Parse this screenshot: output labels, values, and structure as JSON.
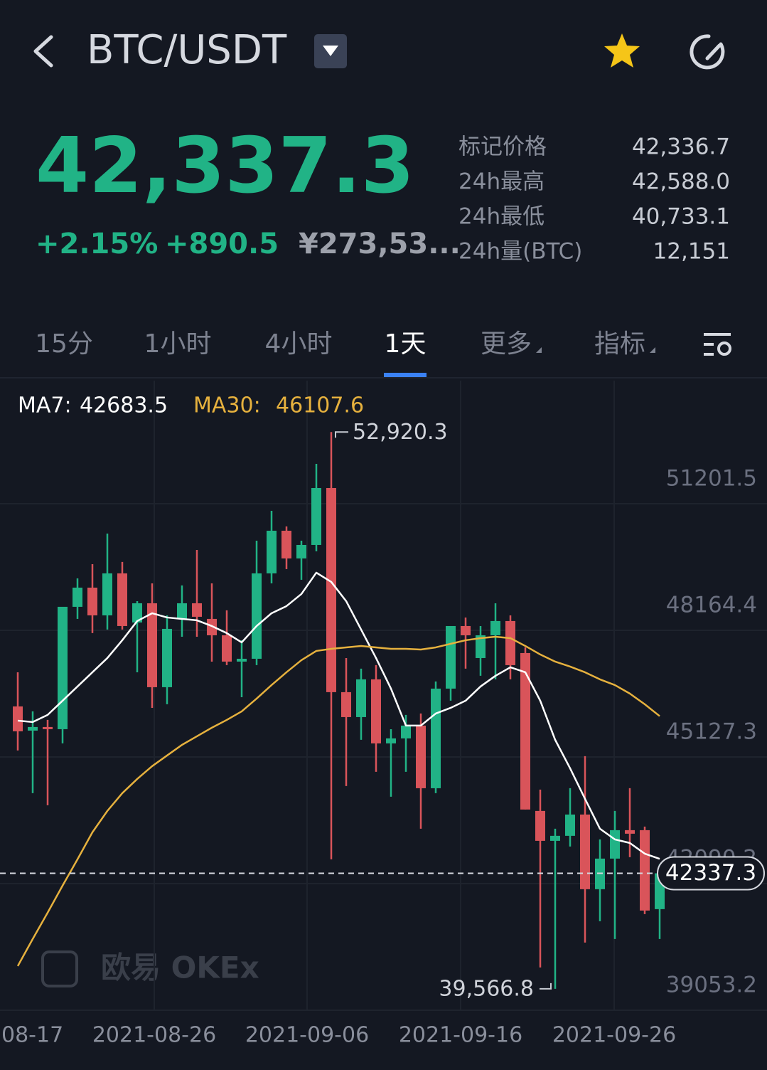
{
  "header": {
    "pair": "BTC/USDT"
  },
  "ticker": {
    "last": "42,337.3",
    "change_pct": "+2.15%",
    "change": "+890.5",
    "cny": "¥273,53...",
    "stats": [
      {
        "label": "标记价格",
        "value": "42,336.7"
      },
      {
        "label": "24h最高",
        "value": "42,588.0"
      },
      {
        "label": "24h最低",
        "value": "40,733.1"
      },
      {
        "label": "24h量(BTC)",
        "value": "12,151"
      }
    ]
  },
  "tabs": [
    "15分",
    "1小时",
    "4小时",
    "1天",
    "更多",
    "指标"
  ],
  "active_tab": 3,
  "chart_data": {
    "type": "candlestick",
    "up_color": "#21b386",
    "down_color": "#d9545a",
    "grid": true,
    "open": [
      46340,
      45760,
      45846,
      45794,
      48729,
      49189,
      48524,
      49531,
      48353,
      48814,
      46801,
      48439,
      48814,
      48439,
      48046,
      47415,
      47483,
      49531,
      50554,
      49889,
      50213,
      51578,
      46682,
      46084,
      46989,
      45453,
      45573,
      45880,
      44378,
      46767,
      48268,
      47500,
      48046,
      48388,
      47620,
      43833,
      43116,
      43236,
      43747,
      41956,
      42690,
      43372,
      43372,
      41478
    ],
    "high": [
      47159,
      46221,
      46016,
      48729,
      49411,
      49752,
      50486,
      49804,
      48865,
      49292,
      48524,
      49241,
      50094,
      49292,
      48644,
      47927,
      50315,
      51032,
      50657,
      50315,
      52158,
      52920.3,
      47500,
      47245,
      47330,
      45794,
      46136,
      46170,
      46938,
      48268,
      48473,
      48268,
      48814,
      48524,
      47756,
      44344,
      43406,
      44378,
      45146,
      43150,
      43833,
      44378,
      43457,
      42553
    ],
    "low": [
      45283,
      44259,
      43969,
      45453,
      48439,
      48098,
      48183,
      48183,
      47159,
      46306,
      46392,
      48012,
      48012,
      47415,
      47330,
      46562,
      47330,
      49292,
      49633,
      49377,
      50060,
      42672,
      44430,
      45539,
      44771,
      44174,
      44771,
      43406,
      44259,
      46477,
      47245,
      47074,
      46989,
      46989,
      43867,
      40079,
      39566.8,
      42980,
      40677,
      41188,
      40762,
      42724,
      41359,
      40762
    ],
    "close": [
      45743,
      45846,
      45794,
      48729,
      49189,
      48524,
      49531,
      48268,
      48814,
      46801,
      48200,
      48814,
      48490,
      48046,
      47415,
      47483,
      49531,
      50554,
      49889,
      50213,
      51578,
      46682,
      46084,
      46989,
      45453,
      45573,
      45880,
      44378,
      46767,
      48268,
      48046,
      48046,
      48388,
      47330,
      43867,
      43116,
      43236,
      43747,
      41956,
      42690,
      43372,
      43287,
      41444,
      42337.3
    ],
    "series": [
      {
        "name": "MA7:",
        "color": "#ffffff",
        "values": [
          45999,
          45965,
          46136,
          46477,
          46818,
          47159,
          47500,
          47927,
          48388,
          48575,
          48473,
          48439,
          48405,
          48268,
          48098,
          47876,
          48268,
          48575,
          48746,
          49036,
          49548,
          49326,
          48865,
          48183,
          47500,
          46767,
          45880,
          45880,
          46170,
          46306,
          46477,
          46818,
          47074,
          47279,
          47159,
          46477,
          45539,
          44856,
          44123,
          43406,
          43150,
          43065,
          42809,
          42683.5
        ]
      },
      {
        "name": "MA30:",
        "color": "#e6b13e",
        "values": [
          40113,
          40762,
          41393,
          42041,
          42672,
          43321,
          43833,
          44259,
          44600,
          44907,
          45163,
          45418,
          45624,
          45829,
          46016,
          46221,
          46528,
          46852,
          47159,
          47449,
          47671,
          47722,
          47756,
          47790,
          47756,
          47722,
          47722,
          47705,
          47756,
          47842,
          47927,
          47978,
          48012,
          47978,
          47790,
          47586,
          47415,
          47296,
          47159,
          46989,
          46852,
          46648,
          46392,
          46107.6
        ]
      }
    ],
    "ylim": [
      39053.2,
      54154
    ],
    "yticks": [
      51201.5,
      48164.4,
      45127.3,
      42090.2,
      39053.2
    ],
    "x_labels": [
      "08-17",
      "2021-08-26",
      "2021-09-06",
      "2021-09-16",
      "2021-09-26"
    ],
    "annotations": [
      {
        "value": 52920.3,
        "label": "52,920.3"
      },
      {
        "value": 39566.8,
        "label": "39,566.8"
      }
    ],
    "last_price": 42337.3,
    "watermark": "欧易 OKEx"
  }
}
